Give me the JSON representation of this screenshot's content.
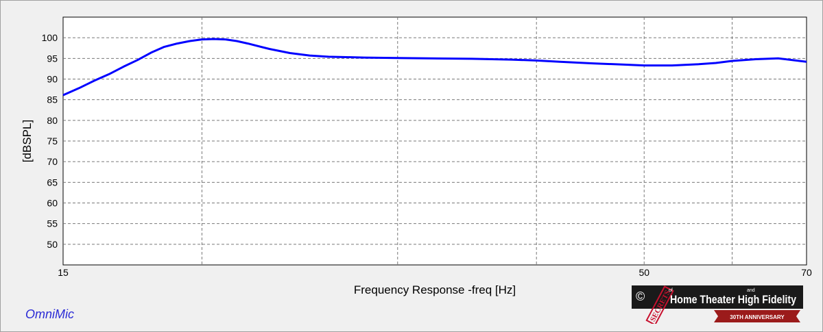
{
  "app": {
    "brand": "OmniMic",
    "logo": {
      "copyright_symbol": "©",
      "stamp_word": "SECRETS",
      "of_word": "of",
      "and_word": "and",
      "title_text": "Home Theater High Fidelity",
      "anniversary_text": "30TH ANNIVERSARY"
    }
  },
  "colors": {
    "curve": "#0000ff",
    "plot_background": "#ffffff",
    "window_background": "#f0f0f0",
    "grid": "#777777",
    "brand_text": "#2b2bd6",
    "logo_background": "#1a1a1a",
    "logo_stamp": "#c8102e",
    "logo_ribbon": "#9b1b1b"
  },
  "chart_data": {
    "type": "line",
    "title": "",
    "xlabel": "Frequency Response -freq [Hz]",
    "ylabel": "[dBSPL]",
    "xscale": "log",
    "xlim": [
      15,
      70
    ],
    "ylim": [
      45,
      105
    ],
    "grid": true,
    "grid_style": "dashed",
    "legend": "none",
    "x_tick_labels": [
      "15",
      "50",
      "70"
    ],
    "x_gridlines": [
      20,
      30,
      40,
      50,
      60
    ],
    "y_tick_labels": [
      "100",
      "95",
      "90",
      "85",
      "80",
      "75",
      "70",
      "65",
      "60",
      "55",
      "50"
    ],
    "series": [
      {
        "x": [
          15,
          15.5,
          16,
          16.5,
          17,
          17.5,
          18,
          18.5,
          19,
          19.5,
          20,
          20.5,
          21,
          21.5,
          22,
          23,
          24,
          25,
          26,
          27,
          28,
          30,
          32,
          35,
          38,
          40,
          42,
          45,
          48,
          50,
          53,
          56,
          58,
          60,
          63,
          66,
          70
        ],
        "y": [
          86.1,
          87.8,
          89.6,
          91.2,
          93.0,
          94.6,
          96.4,
          97.8,
          98.6,
          99.2,
          99.6,
          99.7,
          99.6,
          99.2,
          98.6,
          97.3,
          96.3,
          95.7,
          95.4,
          95.3,
          95.2,
          95.1,
          95.0,
          94.9,
          94.7,
          94.5,
          94.2,
          93.8,
          93.5,
          93.3,
          93.3,
          93.6,
          93.9,
          94.4,
          94.8,
          95.0,
          94.2
        ]
      }
    ]
  }
}
